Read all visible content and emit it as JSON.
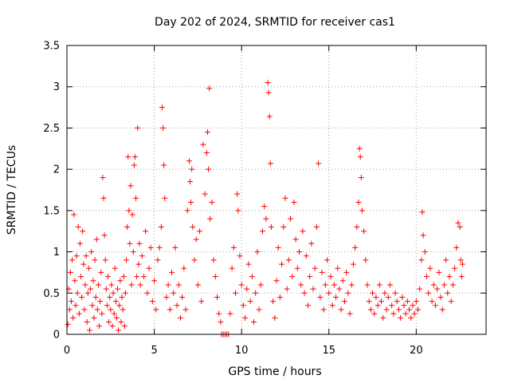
{
  "chart_data": {
    "type": "scatter",
    "title": "Day 202 of 2024, SRMTID for receiver cas1",
    "xlabel": "GPS time / hours",
    "ylabel": "SRMTID / TECUs",
    "xlim": [
      0,
      24
    ],
    "ylim": [
      0,
      3.5
    ],
    "xticks": [
      0,
      5,
      10,
      15,
      20
    ],
    "xtick_labels": [
      "0",
      "5",
      "10",
      "15",
      "20"
    ],
    "yticks": [
      0,
      0.5,
      1,
      1.5,
      2,
      2.5,
      3,
      3.5
    ],
    "ytick_labels": [
      "0",
      "0.5",
      "1",
      "1.5",
      "2",
      "2.5",
      "3",
      "3.5"
    ],
    "grid": true,
    "marker": "+",
    "color": "#ff0000",
    "series": [
      {
        "name": "SRMTID",
        "points": [
          [
            0.05,
            0.12
          ],
          [
            0.1,
            0.55
          ],
          [
            0.15,
            0.3
          ],
          [
            0.2,
            0.75
          ],
          [
            0.25,
            0.4
          ],
          [
            0.3,
            0.9
          ],
          [
            0.35,
            0.2
          ],
          [
            0.4,
            1.45
          ],
          [
            0.45,
            0.65
          ],
          [
            0.5,
            0.35
          ],
          [
            0.55,
            0.95
          ],
          [
            0.6,
            0.5
          ],
          [
            0.65,
            1.3
          ],
          [
            0.7,
            0.25
          ],
          [
            0.75,
            1.1
          ],
          [
            0.8,
            0.7
          ],
          [
            0.85,
            0.45
          ],
          [
            0.9,
            1.25
          ],
          [
            0.95,
            0.85
          ],
          [
            1.0,
            0.3
          ],
          [
            1.05,
            0.6
          ],
          [
            1.1,
            0.95
          ],
          [
            1.15,
            0.15
          ],
          [
            1.2,
            0.5
          ],
          [
            1.25,
            0.8
          ],
          [
            1.3,
            0.05
          ],
          [
            1.35,
            0.55
          ],
          [
            1.4,
            1.0
          ],
          [
            1.45,
            0.35
          ],
          [
            1.5,
            0.65
          ],
          [
            1.55,
            0.2
          ],
          [
            1.6,
            0.9
          ],
          [
            1.65,
            0.45
          ],
          [
            1.7,
            1.15
          ],
          [
            1.75,
            0.3
          ],
          [
            1.8,
            0.6
          ],
          [
            1.85,
            0.1
          ],
          [
            1.9,
            0.4
          ],
          [
            1.95,
            0.75
          ],
          [
            2.0,
            0.25
          ],
          [
            2.05,
            1.9
          ],
          [
            2.1,
            1.65
          ],
          [
            2.15,
            1.2
          ],
          [
            2.2,
            0.9
          ],
          [
            2.25,
            0.55
          ],
          [
            2.3,
            0.35
          ],
          [
            2.35,
            0.7
          ],
          [
            2.4,
            0.15
          ],
          [
            2.45,
            0.45
          ],
          [
            2.5,
            0.3
          ],
          [
            2.55,
            0.6
          ],
          [
            2.6,
            0.1
          ],
          [
            2.65,
            0.5
          ],
          [
            2.7,
            0.25
          ],
          [
            2.75,
            0.8
          ],
          [
            2.8,
            0.4
          ],
          [
            2.85,
            0.2
          ],
          [
            2.9,
            0.55
          ],
          [
            2.95,
            0.05
          ],
          [
            3.0,
            0.35
          ],
          [
            3.05,
            0.65
          ],
          [
            3.1,
            0.15
          ],
          [
            3.15,
            0.45
          ],
          [
            3.2,
            0.3
          ],
          [
            3.25,
            0.7
          ],
          [
            3.3,
            0.1
          ],
          [
            3.35,
            0.5
          ],
          [
            3.4,
            0.9
          ],
          [
            3.45,
            1.3
          ],
          [
            3.5,
            2.15
          ],
          [
            3.55,
            1.5
          ],
          [
            3.6,
            1.1
          ],
          [
            3.65,
            1.8
          ],
          [
            3.7,
            0.6
          ],
          [
            3.75,
            1.45
          ],
          [
            3.8,
            1.0
          ],
          [
            3.85,
            2.05
          ],
          [
            3.9,
            2.15
          ],
          [
            3.95,
            1.65
          ],
          [
            4.0,
            0.7
          ],
          [
            4.05,
            2.5
          ],
          [
            4.1,
            0.85
          ],
          [
            4.15,
            1.1
          ],
          [
            4.2,
            0.6
          ],
          [
            4.3,
            0.95
          ],
          [
            4.4,
            0.7
          ],
          [
            4.5,
            1.25
          ],
          [
            4.6,
            0.5
          ],
          [
            4.7,
            0.8
          ],
          [
            4.8,
            1.05
          ],
          [
            4.9,
            0.4
          ],
          [
            5.0,
            0.65
          ],
          [
            5.1,
            0.3
          ],
          [
            5.2,
            0.9
          ],
          [
            5.3,
            1.05
          ],
          [
            5.4,
            1.3
          ],
          [
            5.45,
            2.75
          ],
          [
            5.5,
            2.5
          ],
          [
            5.55,
            2.05
          ],
          [
            5.6,
            1.65
          ],
          [
            5.7,
            0.45
          ],
          [
            5.8,
            0.6
          ],
          [
            5.9,
            0.3
          ],
          [
            6.0,
            0.75
          ],
          [
            6.1,
            0.5
          ],
          [
            6.2,
            1.05
          ],
          [
            6.3,
            0.35
          ],
          [
            6.4,
            0.6
          ],
          [
            6.5,
            0.2
          ],
          [
            6.6,
            0.45
          ],
          [
            6.7,
            0.8
          ],
          [
            6.8,
            0.3
          ],
          [
            6.9,
            1.5
          ],
          [
            7.0,
            2.1
          ],
          [
            7.05,
            1.85
          ],
          [
            7.1,
            1.6
          ],
          [
            7.15,
            2.0
          ],
          [
            7.2,
            1.3
          ],
          [
            7.3,
            0.9
          ],
          [
            7.4,
            1.15
          ],
          [
            7.5,
            0.6
          ],
          [
            7.6,
            1.25
          ],
          [
            7.7,
            0.4
          ],
          [
            7.8,
            2.3
          ],
          [
            7.9,
            1.7
          ],
          [
            8.0,
            2.2
          ],
          [
            8.05,
            2.45
          ],
          [
            8.1,
            2.0
          ],
          [
            8.15,
            2.98
          ],
          [
            8.2,
            1.4
          ],
          [
            8.3,
            1.6
          ],
          [
            8.4,
            0.9
          ],
          [
            8.5,
            0.7
          ],
          [
            8.6,
            0.45
          ],
          [
            8.7,
            0.25
          ],
          [
            8.8,
            0.15
          ],
          [
            8.85,
            0.0
          ],
          [
            8.95,
            0.0
          ],
          [
            9.05,
            0.0
          ],
          [
            9.15,
            0.0
          ],
          [
            9.25,
            0.0
          ],
          [
            9.35,
            0.25
          ],
          [
            9.45,
            0.8
          ],
          [
            9.55,
            1.05
          ],
          [
            9.65,
            0.5
          ],
          [
            9.75,
            1.7
          ],
          [
            9.8,
            1.5
          ],
          [
            9.9,
            0.95
          ],
          [
            10.0,
            0.6
          ],
          [
            10.1,
            0.35
          ],
          [
            10.2,
            0.2
          ],
          [
            10.3,
            0.55
          ],
          [
            10.4,
            0.85
          ],
          [
            10.5,
            0.4
          ],
          [
            10.6,
            0.7
          ],
          [
            10.7,
            0.15
          ],
          [
            10.8,
            0.5
          ],
          [
            10.9,
            1.0
          ],
          [
            11.0,
            0.3
          ],
          [
            11.1,
            0.6
          ],
          [
            11.2,
            1.25
          ],
          [
            11.3,
            1.55
          ],
          [
            11.4,
            1.4
          ],
          [
            11.5,
            3.05
          ],
          [
            11.55,
            2.93
          ],
          [
            11.6,
            2.64
          ],
          [
            11.65,
            2.07
          ],
          [
            11.7,
            1.3
          ],
          [
            11.8,
            0.4
          ],
          [
            11.9,
            0.2
          ],
          [
            12.0,
            0.65
          ],
          [
            12.1,
            1.05
          ],
          [
            12.2,
            0.45
          ],
          [
            12.3,
            0.85
          ],
          [
            12.4,
            1.3
          ],
          [
            12.5,
            1.65
          ],
          [
            12.6,
            0.55
          ],
          [
            12.7,
            0.9
          ],
          [
            12.8,
            1.4
          ],
          [
            12.9,
            0.7
          ],
          [
            13.0,
            1.6
          ],
          [
            13.1,
            1.15
          ],
          [
            13.2,
            0.8
          ],
          [
            13.3,
            1.0
          ],
          [
            13.4,
            0.6
          ],
          [
            13.5,
            1.25
          ],
          [
            13.6,
            0.5
          ],
          [
            13.7,
            0.95
          ],
          [
            13.8,
            0.35
          ],
          [
            13.9,
            0.7
          ],
          [
            14.0,
            1.1
          ],
          [
            14.1,
            0.55
          ],
          [
            14.2,
            0.8
          ],
          [
            14.3,
            1.3
          ],
          [
            14.4,
            2.07
          ],
          [
            14.5,
            0.45
          ],
          [
            14.6,
            0.75
          ],
          [
            14.7,
            0.3
          ],
          [
            14.8,
            0.6
          ],
          [
            14.9,
            0.9
          ],
          [
            15.0,
            0.5
          ],
          [
            15.1,
            0.7
          ],
          [
            15.2,
            0.35
          ],
          [
            15.3,
            0.6
          ],
          [
            15.4,
            0.45
          ],
          [
            15.5,
            0.8
          ],
          [
            15.6,
            0.55
          ],
          [
            15.7,
            0.3
          ],
          [
            15.8,
            0.65
          ],
          [
            15.9,
            0.4
          ],
          [
            16.0,
            0.75
          ],
          [
            16.1,
            0.5
          ],
          [
            16.2,
            0.25
          ],
          [
            16.3,
            0.6
          ],
          [
            16.4,
            0.85
          ],
          [
            16.5,
            1.05
          ],
          [
            16.6,
            1.3
          ],
          [
            16.7,
            1.6
          ],
          [
            16.75,
            2.25
          ],
          [
            16.8,
            2.15
          ],
          [
            16.85,
            1.9
          ],
          [
            16.9,
            1.5
          ],
          [
            17.0,
            1.25
          ],
          [
            17.1,
            0.9
          ],
          [
            17.2,
            0.6
          ],
          [
            17.3,
            0.4
          ],
          [
            17.4,
            0.3
          ],
          [
            17.5,
            0.5
          ],
          [
            17.6,
            0.25
          ],
          [
            17.7,
            0.45
          ],
          [
            17.8,
            0.35
          ],
          [
            17.9,
            0.6
          ],
          [
            18.0,
            0.4
          ],
          [
            18.1,
            0.2
          ],
          [
            18.2,
            0.5
          ],
          [
            18.3,
            0.3
          ],
          [
            18.4,
            0.45
          ],
          [
            18.5,
            0.6
          ],
          [
            18.6,
            0.35
          ],
          [
            18.7,
            0.25
          ],
          [
            18.8,
            0.5
          ],
          [
            18.9,
            0.4
          ],
          [
            19.0,
            0.3
          ],
          [
            19.1,
            0.2
          ],
          [
            19.2,
            0.45
          ],
          [
            19.3,
            0.35
          ],
          [
            19.4,
            0.25
          ],
          [
            19.5,
            0.4
          ],
          [
            19.6,
            0.3
          ],
          [
            19.7,
            0.2
          ],
          [
            19.8,
            0.35
          ],
          [
            19.9,
            0.25
          ],
          [
            20.0,
            0.4
          ],
          [
            20.1,
            0.3
          ],
          [
            20.2,
            0.55
          ],
          [
            20.3,
            0.9
          ],
          [
            20.35,
            1.48
          ],
          [
            20.4,
            1.2
          ],
          [
            20.5,
            1.0
          ],
          [
            20.6,
            0.7
          ],
          [
            20.7,
            0.5
          ],
          [
            20.8,
            0.8
          ],
          [
            20.9,
            0.4
          ],
          [
            21.0,
            0.6
          ],
          [
            21.1,
            0.35
          ],
          [
            21.2,
            0.55
          ],
          [
            21.3,
            0.75
          ],
          [
            21.4,
            0.45
          ],
          [
            21.5,
            0.3
          ],
          [
            21.6,
            0.6
          ],
          [
            21.7,
            0.9
          ],
          [
            21.8,
            0.5
          ],
          [
            21.9,
            0.7
          ],
          [
            22.0,
            0.4
          ],
          [
            22.1,
            0.6
          ],
          [
            22.2,
            0.8
          ],
          [
            22.3,
            1.05
          ],
          [
            22.4,
            1.35
          ],
          [
            22.5,
            1.3
          ],
          [
            22.55,
            0.9
          ],
          [
            22.6,
            0.7
          ],
          [
            22.65,
            0.85
          ]
        ]
      }
    ]
  }
}
